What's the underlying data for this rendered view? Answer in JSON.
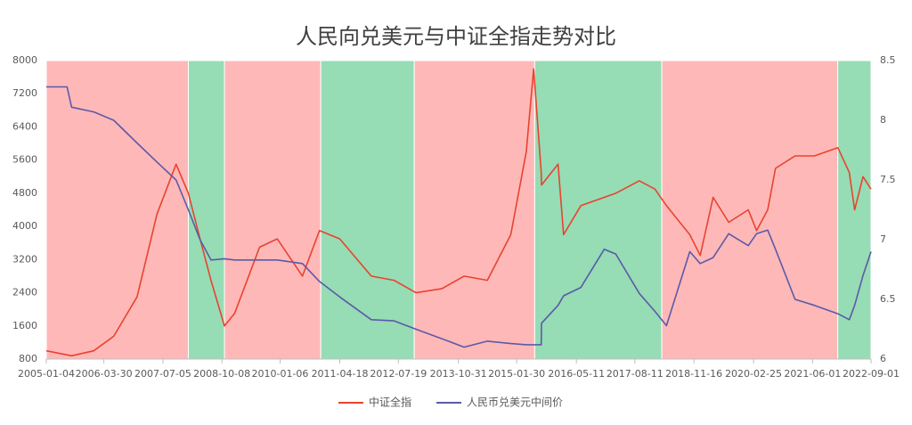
{
  "chart_data": {
    "type": "line",
    "title": "人民向兑美元与中证全指走势对比",
    "x": [
      "2005-01-04",
      "2005-06-15",
      "2005-07-21",
      "2006-01-10",
      "2006-06-15",
      "2006-12-15",
      "2007-05-20",
      "2007-10-16",
      "2008-01-20",
      "2008-04-20",
      "2008-07-15",
      "2008-10-28",
      "2009-01-15",
      "2009-07-30",
      "2009-12-15",
      "2010-06-30",
      "2010-11-10",
      "2011-04-18",
      "2011-12-20",
      "2012-06-15",
      "2012-12-04",
      "2013-06-25",
      "2013-12-15",
      "2014-06-15",
      "2014-12-15",
      "2015-04-15",
      "2015-06-12",
      "2015-08-10",
      "2015-08-12",
      "2015-12-20",
      "2016-02-01",
      "2016-06-15",
      "2016-12-15",
      "2017-03-15",
      "2017-09-15",
      "2018-01-15",
      "2018-04-15",
      "2018-10-15",
      "2019-01-04",
      "2019-04-15",
      "2019-08-15",
      "2020-01-15",
      "2020-03-20",
      "2020-06-15",
      "2020-08-15",
      "2021-01-15",
      "2021-06-15",
      "2021-12-15",
      "2022-03-15",
      "2022-04-26",
      "2022-06-30",
      "2022-09-01"
    ],
    "series": [
      {
        "name": "中证全指",
        "color": "#e8432e",
        "values": [
          1000,
          900,
          880,
          1000,
          1350,
          2300,
          4300,
          5500,
          4800,
          3700,
          2700,
          1600,
          1900,
          3500,
          3700,
          2800,
          3900,
          3700,
          2800,
          2700,
          2400,
          2500,
          2800,
          2700,
          3800,
          5800,
          7800,
          5300,
          5000,
          5500,
          3800,
          4500,
          4700,
          4800,
          5100,
          4900,
          4500,
          3800,
          3300,
          4700,
          4100,
          4400,
          3900,
          4400,
          5400,
          5700,
          5700,
          5900,
          5300,
          4400,
          5200,
          4900
        ]
      },
      {
        "name": "人民币兑美元中间价",
        "color": "#5a5aa8",
        "axis": "y2",
        "values": [
          8.28,
          8.28,
          8.11,
          8.07,
          8.0,
          7.81,
          7.65,
          7.5,
          7.25,
          7.0,
          6.83,
          6.84,
          6.83,
          6.83,
          6.83,
          6.8,
          6.65,
          6.52,
          6.33,
          6.32,
          6.25,
          6.17,
          6.1,
          6.15,
          6.13,
          6.12,
          6.12,
          6.12,
          6.3,
          6.45,
          6.53,
          6.6,
          6.92,
          6.88,
          6.55,
          6.4,
          6.28,
          6.9,
          6.8,
          6.85,
          7.05,
          6.95,
          7.05,
          7.08,
          6.92,
          6.5,
          6.45,
          6.38,
          6.33,
          6.45,
          6.7,
          6.9
        ]
      }
    ],
    "xlim": [
      "2005-01-04",
      "2022-09-01"
    ],
    "xticks": [
      "2005-01-04",
      "2006-03-30",
      "2007-07-05",
      "2008-10-08",
      "2010-01-06",
      "2011-04-18",
      "2012-07-19",
      "2013-10-31",
      "2015-01-30",
      "2016-05-11",
      "2017-08-11",
      "2018-11-16",
      "2020-02-25",
      "2021-06-01",
      "2022-09-01"
    ],
    "ylim": [
      800,
      8000
    ],
    "yticks": [
      800,
      1600,
      2400,
      3200,
      4000,
      4800,
      5600,
      6400,
      7200,
      8000
    ],
    "y2lim": [
      6,
      8.5
    ],
    "y2ticks": [
      6,
      6.5,
      7,
      7.5,
      8,
      8.5
    ],
    "bands": [
      {
        "start": "2005-01-04",
        "end": "2008-01-20",
        "color": "#ffb8b8"
      },
      {
        "start": "2008-01-20",
        "end": "2008-10-28",
        "color": "#96dcb4"
      },
      {
        "start": "2008-10-28",
        "end": "2010-11-20",
        "color": "#ffb8b8"
      },
      {
        "start": "2010-11-20",
        "end": "2012-11-20",
        "color": "#96dcb4"
      },
      {
        "start": "2012-11-20",
        "end": "2015-06-20",
        "color": "#ffb8b8"
      },
      {
        "start": "2015-06-20",
        "end": "2018-03-10",
        "color": "#96dcb4"
      },
      {
        "start": "2018-03-10",
        "end": "2021-12-15",
        "color": "#ffb8b8"
      },
      {
        "start": "2021-12-15",
        "end": "2022-09-01",
        "color": "#96dcb4"
      }
    ]
  }
}
